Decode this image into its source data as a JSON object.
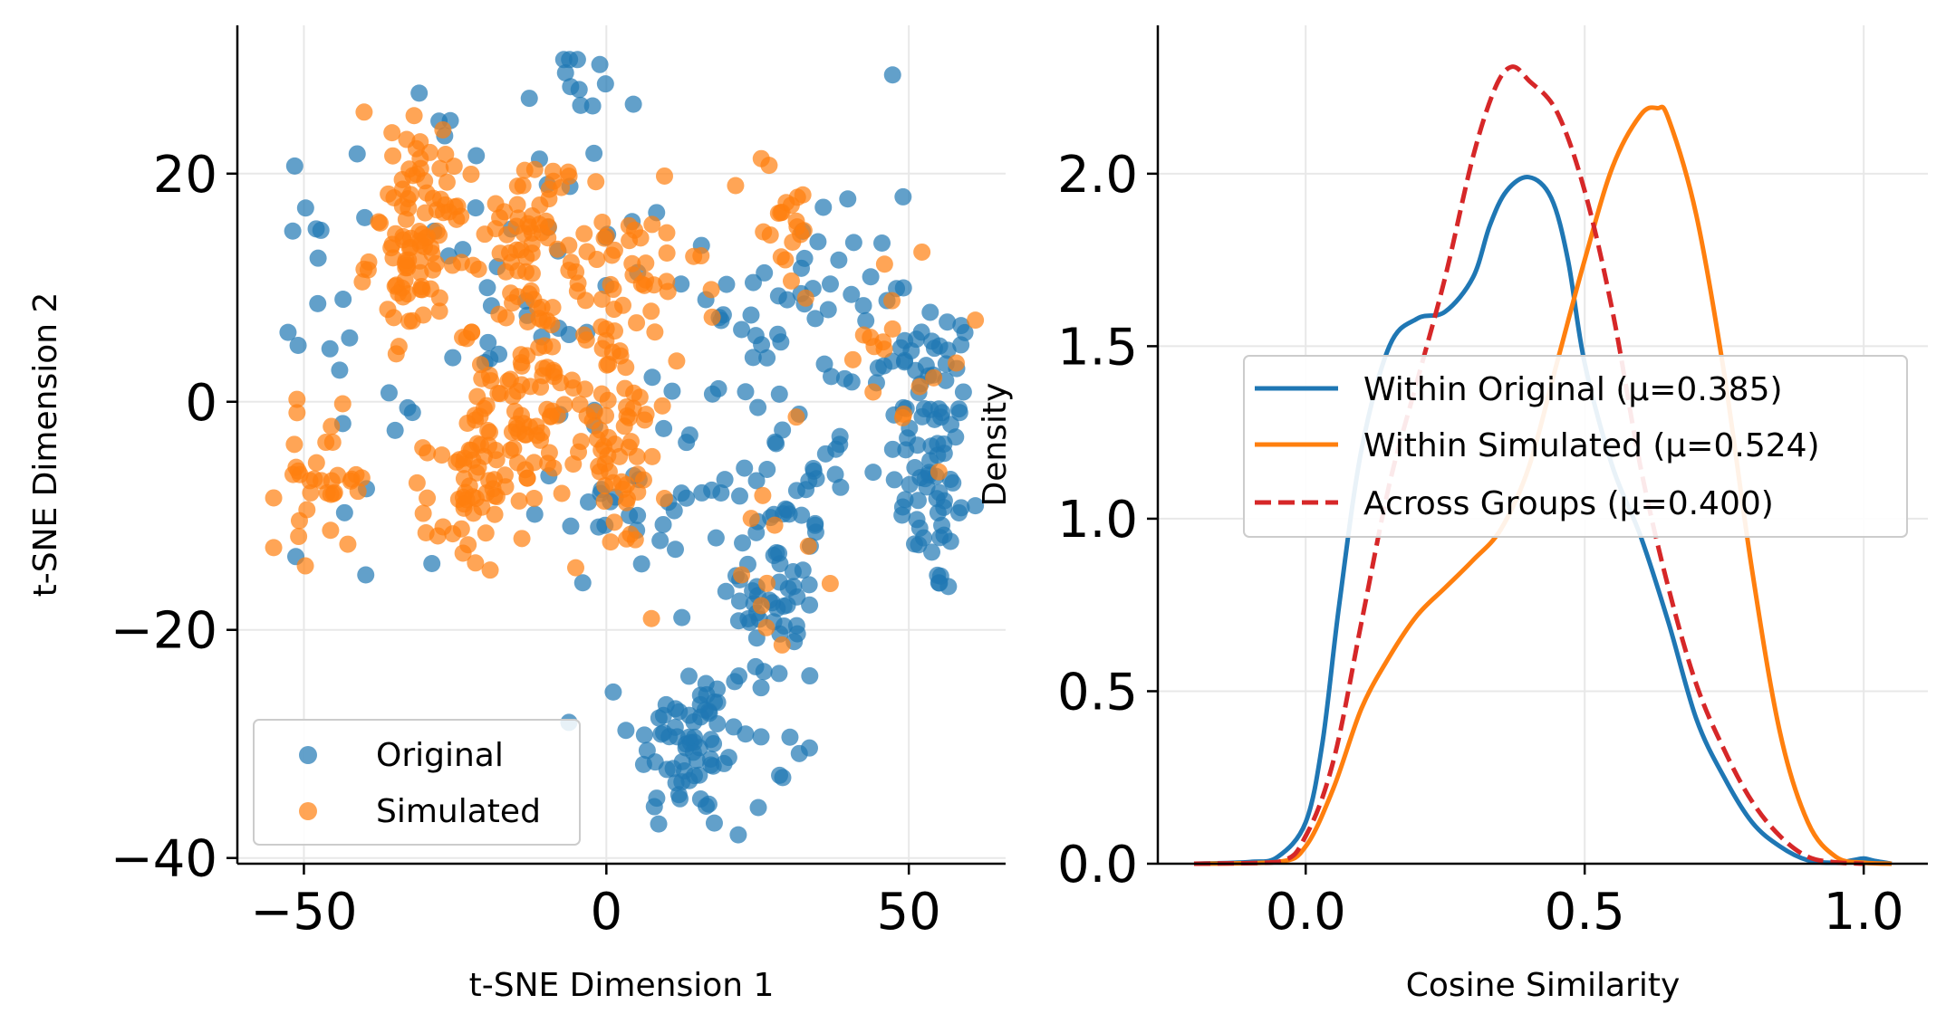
{
  "colors": {
    "original": "#1f77b4",
    "simulated": "#ff7f0e",
    "across": "#d62728",
    "grid": "#e8e8e8"
  },
  "chart_data": [
    {
      "type": "scatter",
      "xlabel": "t-SNE Dimension 1",
      "ylabel": "t-SNE Dimension 2",
      "xlim": [
        -61,
        66
      ],
      "ylim": [
        -40.5,
        33
      ],
      "xticks": [
        -50,
        0,
        50
      ],
      "yticks": [
        -40,
        -20,
        0,
        20
      ],
      "xtick_labels": [
        "−50",
        "0",
        "50"
      ],
      "ytick_labels": [
        "−40",
        "−20",
        "0",
        "20"
      ],
      "grid": true,
      "legend_position": "lower-left",
      "series": [
        {
          "name": "Original",
          "clusters": [
            {
              "cx": 54,
              "cy": -4,
              "sx": 3.5,
              "sy": 7,
              "n": 85
            },
            {
              "cx": 14,
              "cy": -30,
              "sx": 5,
              "sy": 4,
              "n": 70
            },
            {
              "cx": 28,
              "cy": -17,
              "sx": 4,
              "sy": 5,
              "n": 55
            },
            {
              "cx": 25,
              "cy": -5,
              "sx": 8,
              "sy": 6,
              "n": 45
            },
            {
              "cx": 35,
              "cy": 10,
              "sx": 9,
              "sy": 8,
              "n": 40
            },
            {
              "cx": -6,
              "cy": 26,
              "sx": 5,
              "sy": 3,
              "n": 15
            },
            {
              "cx": 5,
              "cy": -8,
              "sx": 8,
              "sy": 4,
              "n": 25
            },
            {
              "cx": -47,
              "cy": 12,
              "sx": 3,
              "sy": 5,
              "n": 15
            },
            {
              "cx": -25,
              "cy": 17,
              "sx": 4,
              "sy": 7,
              "n": 12
            },
            {
              "cx": 30,
              "cy": -32,
              "sx": 3,
              "sy": 2,
              "n": 6
            },
            {
              "cx": -40,
              "cy": -9,
              "sx": 6,
              "sy": 6,
              "n": 10
            },
            {
              "cx": -15,
              "cy": 5,
              "sx": 6,
              "sy": 4,
              "n": 12
            },
            {
              "cx": 45,
              "cy": 6,
              "sx": 6,
              "sy": 3,
              "n": 10
            },
            {
              "cx": 0,
              "cy": 12,
              "sx": 8,
              "sy": 5,
              "n": 12
            }
          ]
        },
        {
          "name": "Simulated",
          "clusters": [
            {
              "cx": -31,
              "cy": 13,
              "sx": 4,
              "sy": 3.5,
              "n": 85
            },
            {
              "cx": -14,
              "cy": -1,
              "sx": 5,
              "sy": 4,
              "n": 85
            },
            {
              "cx": -12,
              "cy": 15,
              "sx": 4,
              "sy": 3.5,
              "n": 60
            },
            {
              "cx": -23,
              "cy": -9,
              "sx": 3.5,
              "sy": 3,
              "n": 45
            },
            {
              "cx": 2,
              "cy": -4,
              "sx": 4,
              "sy": 5,
              "n": 60
            },
            {
              "cx": -47,
              "cy": -7,
              "sx": 4,
              "sy": 3,
              "n": 35
            },
            {
              "cx": 4,
              "cy": 10,
              "sx": 6,
              "sy": 4,
              "n": 40
            },
            {
              "cx": 29,
              "cy": 16,
              "sx": 3,
              "sy": 3,
              "n": 20
            },
            {
              "cx": -32,
              "cy": 23,
              "sx": 5,
              "sy": 2,
              "n": 15
            },
            {
              "cx": 46,
              "cy": 4,
              "sx": 7,
              "sy": 5,
              "n": 20
            },
            {
              "cx": 30,
              "cy": -15,
              "sx": 4,
              "sy": 6,
              "n": 10
            },
            {
              "cx": -10,
              "cy": 9,
              "sx": 5,
              "sy": 3,
              "n": 15
            }
          ]
        }
      ]
    },
    {
      "type": "line",
      "xlabel": "Cosine Similarity",
      "ylabel": "Density",
      "xlim": [
        -0.265,
        1.115
      ],
      "ylim": [
        0,
        2.43
      ],
      "xticks": [
        0.0,
        0.5,
        1.0
      ],
      "yticks": [
        0.0,
        0.5,
        1.0,
        1.5,
        2.0
      ],
      "xtick_labels": [
        "0.0",
        "0.5",
        "1.0"
      ],
      "ytick_labels": [
        "0.0",
        "0.5",
        "1.0",
        "1.5",
        "2.0"
      ],
      "grid": true,
      "legend_position": "center-right",
      "series": [
        {
          "name": "Within Original (μ=0.385)",
          "style": "solid",
          "x": [
            -0.2,
            -0.1,
            -0.05,
            0.0,
            0.03,
            0.06,
            0.1,
            0.15,
            0.2,
            0.25,
            0.3,
            0.33,
            0.36,
            0.4,
            0.44,
            0.47,
            0.5,
            0.55,
            0.6,
            0.65,
            0.7,
            0.75,
            0.8,
            0.85,
            0.9,
            0.95,
            0.98,
            1.0,
            1.02,
            1.05
          ],
          "y": [
            0.0,
            0.005,
            0.02,
            0.12,
            0.35,
            0.75,
            1.2,
            1.5,
            1.58,
            1.6,
            1.7,
            1.85,
            1.95,
            1.99,
            1.93,
            1.75,
            1.45,
            1.15,
            0.95,
            0.7,
            0.42,
            0.25,
            0.12,
            0.05,
            0.01,
            0.003,
            0.01,
            0.015,
            0.008,
            0.0
          ]
        },
        {
          "name": "Within Simulated (μ=0.524)",
          "style": "solid",
          "x": [
            -0.2,
            -0.05,
            0.0,
            0.05,
            0.1,
            0.15,
            0.2,
            0.25,
            0.3,
            0.35,
            0.4,
            0.45,
            0.5,
            0.55,
            0.6,
            0.63,
            0.65,
            0.7,
            0.75,
            0.8,
            0.85,
            0.9,
            0.95,
            1.0,
            1.05
          ],
          "y": [
            0.0,
            0.005,
            0.05,
            0.22,
            0.45,
            0.6,
            0.72,
            0.8,
            0.88,
            0.97,
            1.15,
            1.45,
            1.75,
            2.02,
            2.17,
            2.19,
            2.16,
            1.88,
            1.42,
            0.85,
            0.38,
            0.12,
            0.02,
            0.003,
            0.0
          ]
        },
        {
          "name": "Across Groups (μ=0.400)",
          "style": "dashed",
          "x": [
            -0.2,
            -0.05,
            0.0,
            0.05,
            0.1,
            0.15,
            0.2,
            0.25,
            0.3,
            0.34,
            0.37,
            0.4,
            0.45,
            0.5,
            0.55,
            0.6,
            0.65,
            0.7,
            0.75,
            0.8,
            0.85,
            0.9,
            0.95,
            1.0
          ],
          "y": [
            0.0,
            0.005,
            0.08,
            0.3,
            0.7,
            1.1,
            1.4,
            1.7,
            2.05,
            2.25,
            2.31,
            2.27,
            2.18,
            1.95,
            1.6,
            1.15,
            0.8,
            0.52,
            0.33,
            0.18,
            0.08,
            0.02,
            0.004,
            0.0
          ]
        }
      ]
    }
  ]
}
